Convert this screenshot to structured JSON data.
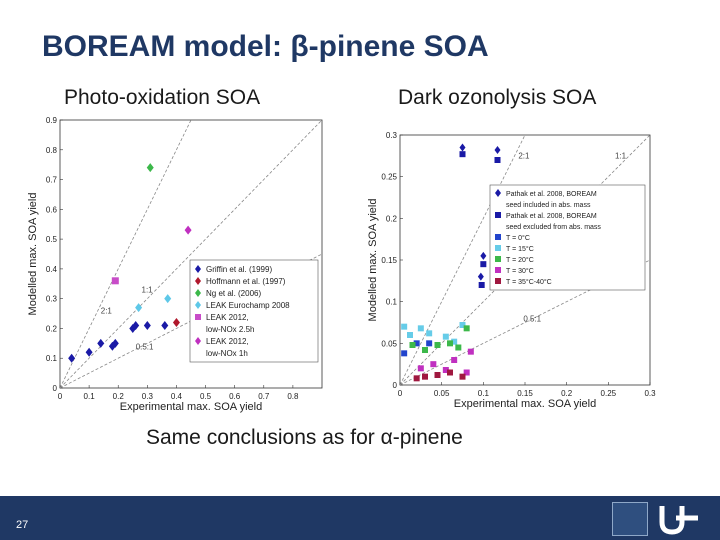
{
  "slide": {
    "title": "BOREAM model: β-pinene SOA",
    "left_subtitle": "Photo-oxidation SOA",
    "right_subtitle": "Dark ozonolysis SOA",
    "conclusion": "Same conclusions as for α-pinene",
    "page_number": "27",
    "colors": {
      "title": "#1f3864",
      "footer": "#1f3864"
    }
  },
  "chart_data": [
    {
      "type": "scatter",
      "xlabel": "Experimental max. SOA yield",
      "ylabel": "Modelled max. SOA yield",
      "xlim": [
        0,
        0.9
      ],
      "ylim": [
        0,
        0.9
      ],
      "xticks": [
        "0",
        "0.1",
        "0.2",
        "0.3",
        "0.4",
        "0.5",
        "0.6",
        "0.7",
        "0.8"
      ],
      "yticks": [
        "0",
        "0.1",
        "0.2",
        "0.3",
        "0.4",
        "0.5",
        "0.6",
        "0.7",
        "0.8",
        "0.9"
      ],
      "legend_position": "bottom-right",
      "reference_lines": [
        {
          "label": "1:1",
          "slope": 1
        },
        {
          "label": "2:1",
          "slope": 2
        },
        {
          "label": "0.5:1",
          "slope": 0.5
        }
      ],
      "series": [
        {
          "name": "Griffin et al. (1999)",
          "marker": "diamond",
          "color": "#1a1aa6",
          "points": [
            [
              0.04,
              0.1
            ],
            [
              0.1,
              0.12
            ],
            [
              0.14,
              0.15
            ],
            [
              0.18,
              0.14
            ],
            [
              0.19,
              0.15
            ],
            [
              0.25,
              0.2
            ],
            [
              0.26,
              0.21
            ],
            [
              0.3,
              0.21
            ],
            [
              0.36,
              0.21
            ]
          ]
        },
        {
          "name": "Hoffmann et al. (1997)",
          "marker": "diamond",
          "color": "#b0182c",
          "points": [
            [
              0.4,
              0.22
            ]
          ]
        },
        {
          "name": "Ng et al. (2006)",
          "marker": "diamond",
          "color": "#3cb84a",
          "points": [
            [
              0.31,
              0.74
            ]
          ]
        },
        {
          "name": "LEAK Eurochamp 2008",
          "marker": "diamond",
          "color": "#5ec8e8",
          "points": [
            [
              0.27,
              0.27
            ],
            [
              0.37,
              0.3
            ]
          ]
        },
        {
          "name": "LEAK 2012, low-NOx 2.5h",
          "marker": "square",
          "color": "#c84cc8",
          "points": [
            [
              0.19,
              0.36
            ]
          ]
        },
        {
          "name": "LEAK 2012, low-NOx 1h",
          "marker": "diamond",
          "color": "#c030c0",
          "points": [
            [
              0.44,
              0.53
            ]
          ]
        }
      ]
    },
    {
      "type": "scatter",
      "xlabel": "Experimental max. SOA yield",
      "ylabel": "Modelled max. SOA yield",
      "xlim": [
        0,
        0.3
      ],
      "ylim": [
        0,
        0.3
      ],
      "xticks": [
        "0",
        "0.05",
        "0.1",
        "0.15",
        "0.2",
        "0.25",
        "0.3"
      ],
      "yticks": [
        "0",
        "0.05",
        "0.1",
        "0.15",
        "0.2",
        "0.25",
        "0.3"
      ],
      "legend_position": "right",
      "reference_lines": [
        {
          "label": "2:1",
          "slope": 2
        },
        {
          "label": "1:1",
          "slope": 1
        },
        {
          "label": "0.5:1",
          "slope": 0.5
        }
      ],
      "series": [
        {
          "name": "Pathak et al. 2008, BOREAM seed included in abs. mass",
          "marker": "diamond",
          "color": "#1a1aa6",
          "points": [
            [
              0.075,
              0.285
            ],
            [
              0.117,
              0.282
            ],
            [
              0.1,
              0.155
            ],
            [
              0.097,
              0.13
            ]
          ]
        },
        {
          "name": "Pathak et al. 2008, BOREAM seed excluded from abs. mass",
          "marker": "square",
          "color": "#1a1aa6",
          "points": [
            [
              0.075,
              0.277
            ],
            [
              0.117,
              0.27
            ],
            [
              0.1,
              0.145
            ],
            [
              0.098,
              0.12
            ]
          ]
        },
        {
          "name": "T = 0°C",
          "marker": "square",
          "color": "#2244cc",
          "points": [
            [
              0.005,
              0.038
            ],
            [
              0.02,
              0.05
            ],
            [
              0.035,
              0.05
            ]
          ]
        },
        {
          "name": "T = 15°C",
          "marker": "square",
          "color": "#66cce8",
          "points": [
            [
              0.005,
              0.07
            ],
            [
              0.012,
              0.06
            ],
            [
              0.025,
              0.068
            ],
            [
              0.035,
              0.062
            ],
            [
              0.055,
              0.058
            ],
            [
              0.065,
              0.052
            ],
            [
              0.075,
              0.072
            ]
          ]
        },
        {
          "name": "T = 20°C",
          "marker": "square",
          "color": "#3cb84a",
          "points": [
            [
              0.015,
              0.048
            ],
            [
              0.03,
              0.042
            ],
            [
              0.045,
              0.048
            ],
            [
              0.06,
              0.05
            ],
            [
              0.08,
              0.068
            ],
            [
              0.07,
              0.045
            ]
          ]
        },
        {
          "name": "T = 30°C",
          "marker": "square",
          "color": "#c030c0",
          "points": [
            [
              0.025,
              0.02
            ],
            [
              0.04,
              0.025
            ],
            [
              0.055,
              0.018
            ],
            [
              0.065,
              0.03
            ],
            [
              0.085,
              0.04
            ],
            [
              0.08,
              0.015
            ]
          ]
        },
        {
          "name": "T = 35°C-40°C",
          "marker": "square",
          "color": "#a01840",
          "points": [
            [
              0.02,
              0.008
            ],
            [
              0.03,
              0.01
            ],
            [
              0.045,
              0.012
            ],
            [
              0.06,
              0.015
            ],
            [
              0.075,
              0.01
            ]
          ]
        }
      ]
    }
  ]
}
